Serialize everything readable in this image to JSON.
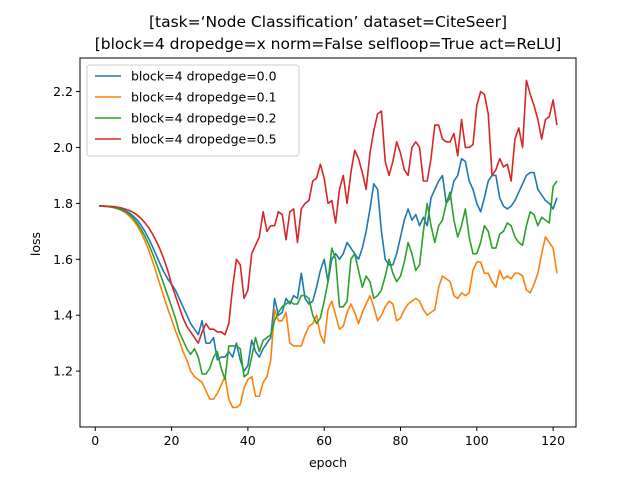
{
  "chart_data": {
    "type": "line",
    "title": "[task=‘Node Classification’ dataset=CiteSeer]",
    "subtitle": "[block=4 dropedge=x norm=False selfloop=True act=ReLU]",
    "xlabel": "epoch",
    "ylabel": "loss",
    "xlim": [
      -4,
      126
    ],
    "ylim": [
      1.0,
      2.32
    ],
    "xticks": [
      0,
      20,
      40,
      60,
      80,
      100,
      120
    ],
    "yticks": [
      1.2,
      1.4,
      1.6,
      1.8,
      2.0,
      2.2
    ],
    "grid": false,
    "legend_position": "top-left",
    "x": [
      1,
      2,
      3,
      4,
      5,
      6,
      7,
      8,
      9,
      10,
      11,
      12,
      13,
      14,
      15,
      16,
      17,
      18,
      19,
      20,
      21,
      22,
      23,
      24,
      25,
      26,
      27,
      28,
      29,
      30,
      31,
      32,
      33,
      34,
      35,
      36,
      37,
      38,
      39,
      40,
      41,
      42,
      43,
      44,
      45,
      46,
      47,
      48,
      49,
      50,
      51,
      52,
      53,
      54,
      55,
      56,
      57,
      58,
      59,
      60,
      61,
      62,
      63,
      64,
      65,
      66,
      67,
      68,
      69,
      70,
      71,
      72,
      73,
      74,
      75,
      76,
      77,
      78,
      79,
      80,
      81,
      82,
      83,
      84,
      85,
      86,
      87,
      88,
      89,
      90,
      91,
      92,
      93,
      94,
      95,
      96,
      97,
      98,
      99,
      100,
      101,
      102,
      103,
      104,
      105,
      106,
      107,
      108,
      109,
      110,
      111,
      112,
      113,
      114,
      115,
      116,
      117,
      118,
      119,
      120,
      121
    ],
    "series": [
      {
        "name": "block=4 dropedge=0.0",
        "color": "#1f77b4",
        "values": [
          1.791,
          1.79,
          1.789,
          1.788,
          1.786,
          1.783,
          1.779,
          1.773,
          1.765,
          1.754,
          1.74,
          1.722,
          1.7,
          1.674,
          1.645,
          1.614,
          1.583,
          1.554,
          1.53,
          1.51,
          1.49,
          1.46,
          1.43,
          1.4,
          1.37,
          1.35,
          1.33,
          1.38,
          1.3,
          1.3,
          1.32,
          1.24,
          1.25,
          1.25,
          1.27,
          1.25,
          1.3,
          1.24,
          1.2,
          1.22,
          1.31,
          1.27,
          1.25,
          1.28,
          1.3,
          1.32,
          1.46,
          1.4,
          1.41,
          1.46,
          1.44,
          1.47,
          1.46,
          1.55,
          1.46,
          1.44,
          1.45,
          1.5,
          1.56,
          1.6,
          1.52,
          1.6,
          1.62,
          1.6,
          1.62,
          1.66,
          1.64,
          1.62,
          1.6,
          1.64,
          1.7,
          1.78,
          1.87,
          1.85,
          1.7,
          1.6,
          1.58,
          1.58,
          1.62,
          1.68,
          1.74,
          1.78,
          1.74,
          1.76,
          1.72,
          1.75,
          1.72,
          1.82,
          1.85,
          1.88,
          1.9,
          1.8,
          1.82,
          1.88,
          1.9,
          1.96,
          1.95,
          1.88,
          1.85,
          1.8,
          1.77,
          1.82,
          1.88,
          1.9,
          1.9,
          1.82,
          1.79,
          1.78,
          1.79,
          1.81,
          1.84,
          1.87,
          1.9,
          1.91,
          1.91,
          1.85,
          1.83,
          1.81,
          1.8,
          1.78,
          1.82
        ]
      },
      {
        "name": "block=4 dropedge=0.1",
        "color": "#ff7f0e",
        "values": [
          1.791,
          1.79,
          1.789,
          1.787,
          1.784,
          1.78,
          1.774,
          1.766,
          1.754,
          1.739,
          1.72,
          1.696,
          1.667,
          1.633,
          1.594,
          1.552,
          1.508,
          1.465,
          1.423,
          1.385,
          1.345,
          1.31,
          1.27,
          1.24,
          1.2,
          1.18,
          1.17,
          1.16,
          1.13,
          1.1,
          1.1,
          1.12,
          1.15,
          1.18,
          1.1,
          1.07,
          1.07,
          1.08,
          1.14,
          1.17,
          1.18,
          1.11,
          1.11,
          1.16,
          1.18,
          1.24,
          1.42,
          1.38,
          1.38,
          1.41,
          1.3,
          1.29,
          1.29,
          1.29,
          1.33,
          1.36,
          1.37,
          1.4,
          1.33,
          1.3,
          1.42,
          1.45,
          1.4,
          1.35,
          1.36,
          1.41,
          1.44,
          1.41,
          1.37,
          1.41,
          1.44,
          1.47,
          1.43,
          1.38,
          1.4,
          1.43,
          1.45,
          1.44,
          1.38,
          1.39,
          1.42,
          1.44,
          1.45,
          1.46,
          1.45,
          1.42,
          1.4,
          1.41,
          1.42,
          1.5,
          1.54,
          1.53,
          1.52,
          1.47,
          1.46,
          1.48,
          1.47,
          1.48,
          1.56,
          1.59,
          1.59,
          1.55,
          1.55,
          1.52,
          1.5,
          1.56,
          1.53,
          1.54,
          1.53,
          1.55,
          1.55,
          1.54,
          1.49,
          1.48,
          1.51,
          1.55,
          1.62,
          1.68,
          1.66,
          1.64,
          1.55
        ]
      },
      {
        "name": "block=4 dropedge=0.2",
        "color": "#2ca02c",
        "values": [
          1.791,
          1.79,
          1.789,
          1.787,
          1.785,
          1.781,
          1.776,
          1.769,
          1.759,
          1.746,
          1.729,
          1.708,
          1.683,
          1.654,
          1.621,
          1.585,
          1.548,
          1.51,
          1.47,
          1.43,
          1.39,
          1.34,
          1.31,
          1.28,
          1.26,
          1.28,
          1.25,
          1.19,
          1.19,
          1.21,
          1.25,
          1.27,
          1.21,
          1.17,
          1.29,
          1.29,
          1.29,
          1.28,
          1.18,
          1.19,
          1.25,
          1.32,
          1.27,
          1.31,
          1.32,
          1.33,
          1.38,
          1.41,
          1.43,
          1.44,
          1.45,
          1.44,
          1.44,
          1.47,
          1.47,
          1.46,
          1.4,
          1.37,
          1.39,
          1.45,
          1.52,
          1.64,
          1.6,
          1.43,
          1.43,
          1.45,
          1.6,
          1.62,
          1.56,
          1.5,
          1.54,
          1.52,
          1.46,
          1.47,
          1.49,
          1.54,
          1.6,
          1.55,
          1.52,
          1.54,
          1.59,
          1.66,
          1.62,
          1.56,
          1.58,
          1.7,
          1.8,
          1.72,
          1.66,
          1.72,
          1.74,
          1.8,
          1.84,
          1.74,
          1.68,
          1.72,
          1.78,
          1.68,
          1.62,
          1.62,
          1.66,
          1.72,
          1.7,
          1.64,
          1.64,
          1.69,
          1.7,
          1.73,
          1.72,
          1.68,
          1.66,
          1.65,
          1.72,
          1.77,
          1.76,
          1.72,
          1.75,
          1.74,
          1.73,
          1.86,
          1.88
        ]
      },
      {
        "name": "block=4 dropedge=0.5",
        "color": "#d62728",
        "values": [
          1.791,
          1.791,
          1.79,
          1.789,
          1.788,
          1.786,
          1.783,
          1.779,
          1.774,
          1.767,
          1.758,
          1.746,
          1.731,
          1.713,
          1.691,
          1.665,
          1.635,
          1.6,
          1.56,
          1.51,
          1.47,
          1.43,
          1.39,
          1.36,
          1.34,
          1.32,
          1.3,
          1.34,
          1.37,
          1.35,
          1.35,
          1.34,
          1.34,
          1.33,
          1.37,
          1.5,
          1.6,
          1.58,
          1.46,
          1.49,
          1.62,
          1.65,
          1.68,
          1.77,
          1.7,
          1.72,
          1.72,
          1.77,
          1.76,
          1.67,
          1.77,
          1.78,
          1.66,
          1.78,
          1.8,
          1.81,
          1.88,
          1.89,
          1.94,
          1.89,
          1.8,
          1.81,
          1.73,
          1.85,
          1.9,
          1.8,
          1.91,
          1.99,
          1.96,
          1.91,
          1.85,
          1.98,
          2.06,
          2.12,
          2.13,
          1.95,
          1.9,
          1.95,
          2.02,
          1.98,
          1.92,
          1.9,
          2.0,
          2.02,
          2.0,
          1.88,
          1.88,
          1.96,
          2.08,
          2.08,
          2.03,
          2.02,
          2.02,
          2.05,
          1.97,
          2.1,
          2.0,
          2.0,
          2.01,
          2.15,
          2.2,
          2.19,
          2.12,
          1.9,
          1.92,
          1.96,
          1.93,
          1.94,
          1.88,
          2.03,
          2.07,
          2.0,
          2.24,
          2.19,
          2.15,
          2.1,
          2.03,
          2.1,
          2.11,
          2.17,
          2.08
        ]
      }
    ]
  }
}
